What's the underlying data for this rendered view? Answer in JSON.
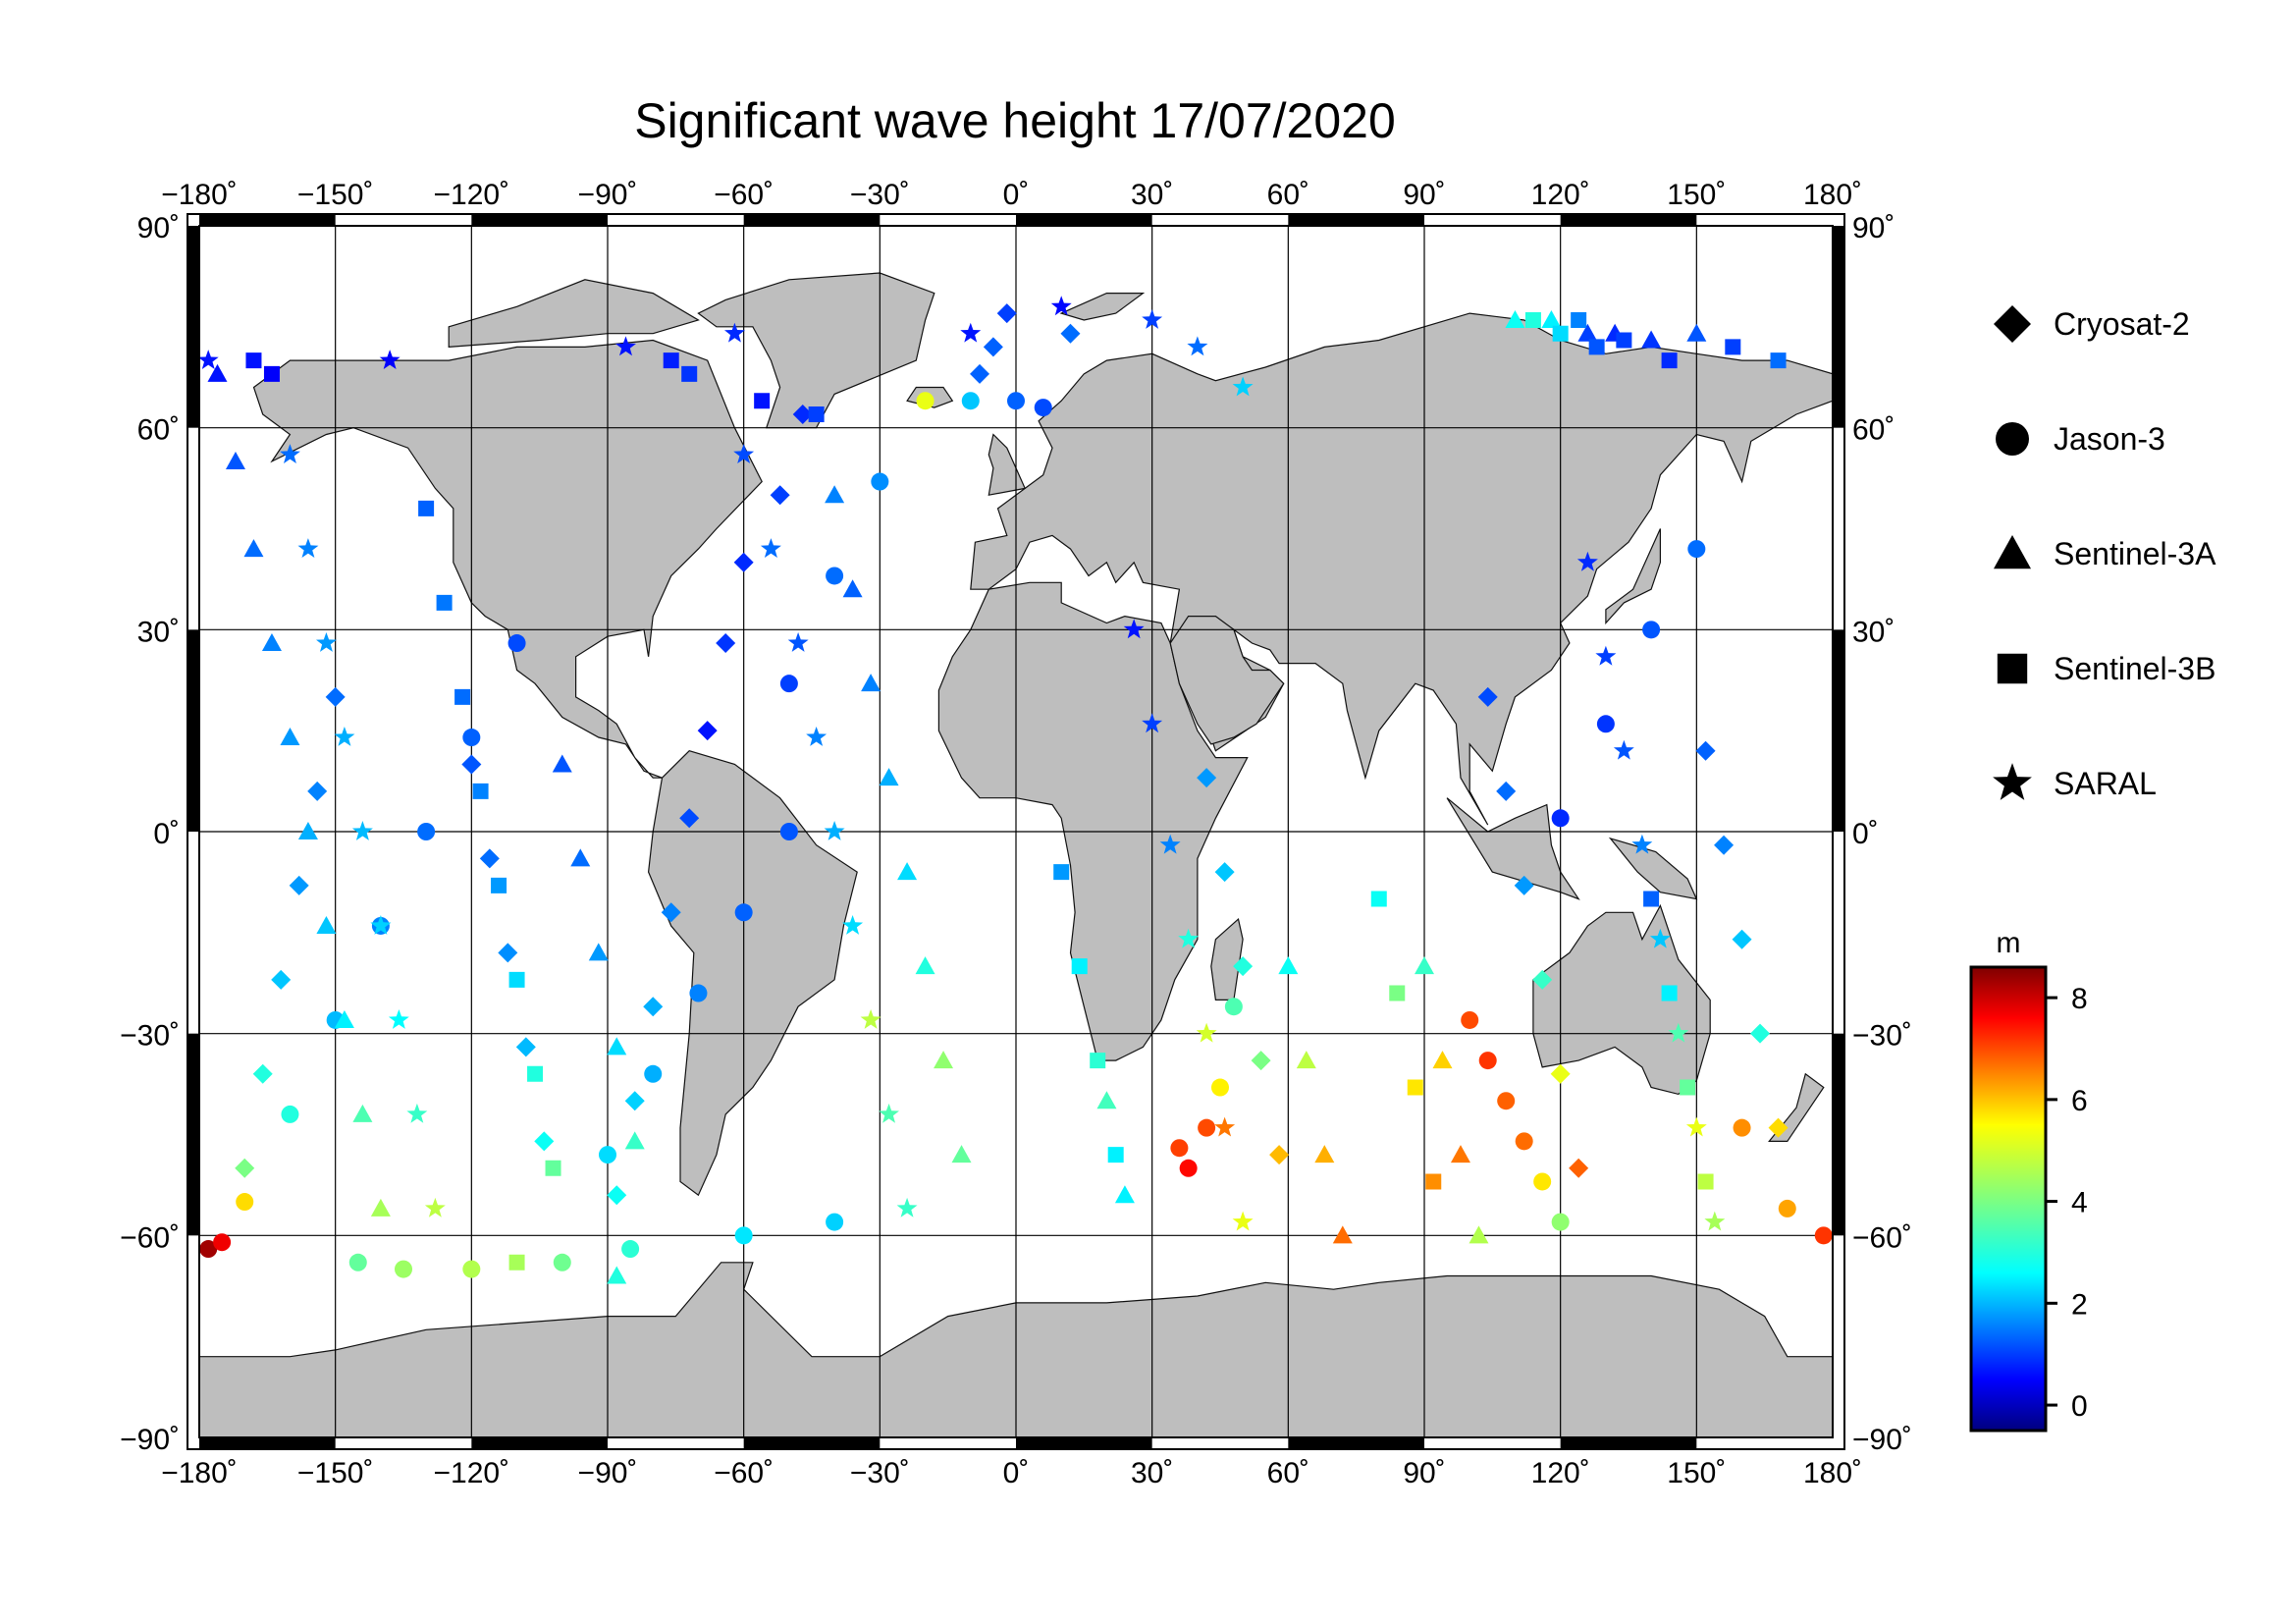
{
  "title": "Significant wave height 17/07/2020",
  "map": {
    "projection": "equirectangular",
    "lon_range": [
      -180,
      180
    ],
    "lat_range": [
      -90,
      90
    ],
    "grid": true,
    "land_color": "#bebebe",
    "ocean_color": "#ffffff",
    "lon_ticks": [
      {
        "value": -180,
        "label": "−180˚"
      },
      {
        "value": -150,
        "label": "−150˚"
      },
      {
        "value": -120,
        "label": "−120˚"
      },
      {
        "value": -90,
        "label": "−90˚"
      },
      {
        "value": -60,
        "label": "−60˚"
      },
      {
        "value": -30,
        "label": "−30˚"
      },
      {
        "value": 0,
        "label": "0˚"
      },
      {
        "value": 30,
        "label": "30˚"
      },
      {
        "value": 60,
        "label": "60˚"
      },
      {
        "value": 90,
        "label": "90˚"
      },
      {
        "value": 120,
        "label": "120˚"
      },
      {
        "value": 150,
        "label": "150˚"
      },
      {
        "value": 180,
        "label": "180˚"
      }
    ],
    "lat_ticks_left": [
      {
        "value": 90,
        "label": "90˚"
      },
      {
        "value": 60,
        "label": "60˚"
      },
      {
        "value": 30,
        "label": "30˚"
      },
      {
        "value": 0,
        "label": "0˚"
      },
      {
        "value": -30,
        "label": "−30˚"
      },
      {
        "value": -60,
        "label": "−60˚"
      },
      {
        "value": -90,
        "label": "−90˚"
      }
    ],
    "lat_ticks_right": [
      {
        "value": 90,
        "label": "90˚"
      },
      {
        "value": 60,
        "label": "60˚"
      },
      {
        "value": 30,
        "label": "30˚"
      },
      {
        "value": 0,
        "label": "0˚"
      },
      {
        "value": -30,
        "label": "−30˚"
      },
      {
        "value": -60,
        "label": "−60˚"
      },
      {
        "value": -90,
        "label": "−90˚"
      }
    ]
  },
  "legend": {
    "placement": "right",
    "items": [
      {
        "label": "Cryosat-2",
        "symbol": "diamond"
      },
      {
        "label": "Jason-3",
        "symbol": "circle"
      },
      {
        "label": "Sentinel-3A",
        "symbol": "triangle"
      },
      {
        "label": "Sentinel-3B",
        "symbol": "square"
      },
      {
        "label": "SARAL",
        "symbol": "star"
      }
    ]
  },
  "colorbar": {
    "unit": "m",
    "colormap": "jet",
    "range": [
      -0.5,
      8.6
    ],
    "ticks": [
      {
        "value": 0,
        "label": "0"
      },
      {
        "value": 2,
        "label": "2"
      },
      {
        "value": 4,
        "label": "4"
      },
      {
        "value": 6,
        "label": "6"
      },
      {
        "value": 8,
        "label": "8"
      }
    ]
  },
  "chart_data": {
    "type": "scatter",
    "title": "Significant wave height 17/07/2020",
    "xlabel": "",
    "ylabel": "",
    "xlim": [
      -180,
      180
    ],
    "ylim": [
      -90,
      90
    ],
    "color_variable": "Significant wave height",
    "color_unit": "m",
    "series": [
      {
        "name": "Cryosat-2",
        "symbol": "diamond",
        "points": [
          [
            -2,
            77,
            1.2
          ],
          [
            -5,
            72,
            1.5
          ],
          [
            -8,
            68,
            1.5
          ],
          [
            12,
            74,
            1.6
          ],
          [
            -47,
            62,
            1.0
          ],
          [
            -52,
            50,
            1.2
          ],
          [
            -60,
            40,
            1.0
          ],
          [
            -64,
            28,
            1.1
          ],
          [
            -68,
            15,
            0.8
          ],
          [
            -72,
            2,
            1.3
          ],
          [
            -76,
            -12,
            1.8
          ],
          [
            -80,
            -26,
            2.2
          ],
          [
            -84,
            -40,
            2.5
          ],
          [
            -88,
            -54,
            3.0
          ],
          [
            42,
            8,
            2.0
          ],
          [
            46,
            -6,
            2.4
          ],
          [
            50,
            -20,
            3.2
          ],
          [
            54,
            -34,
            4.0
          ],
          [
            58,
            -48,
            5.8
          ],
          [
            104,
            20,
            1.3
          ],
          [
            108,
            6,
            1.6
          ],
          [
            112,
            -8,
            2.0
          ],
          [
            116,
            -22,
            3.4
          ],
          [
            120,
            -36,
            5.0
          ],
          [
            124,
            -50,
            6.6
          ],
          [
            -150,
            20,
            1.6
          ],
          [
            -154,
            6,
            1.8
          ],
          [
            -158,
            -8,
            2.0
          ],
          [
            -162,
            -22,
            2.4
          ],
          [
            -166,
            -36,
            3.2
          ],
          [
            -170,
            -50,
            4.0
          ],
          [
            152,
            12,
            1.5
          ],
          [
            156,
            -2,
            1.8
          ],
          [
            160,
            -16,
            2.4
          ],
          [
            164,
            -30,
            3.2
          ],
          [
            168,
            -44,
            5.5
          ],
          [
            -120,
            10,
            1.4
          ],
          [
            -116,
            -4,
            1.6
          ],
          [
            -112,
            -18,
            1.9
          ],
          [
            -108,
            -32,
            2.3
          ],
          [
            -104,
            -46,
            3.0
          ]
        ]
      },
      {
        "name": "Jason-3",
        "symbol": "circle",
        "points": [
          [
            -178,
            -62,
            8.3
          ],
          [
            -175,
            -61,
            7.6
          ],
          [
            -170,
            -55,
            5.5
          ],
          [
            -160,
            -42,
            3.2
          ],
          [
            -150,
            -28,
            2.3
          ],
          [
            -140,
            -14,
            1.8
          ],
          [
            -130,
            0,
            1.6
          ],
          [
            -120,
            14,
            1.5
          ],
          [
            -110,
            28,
            1.3
          ],
          [
            -20,
            64,
            5.0
          ],
          [
            -10,
            64,
            2.4
          ],
          [
            0,
            64,
            1.5
          ],
          [
            6,
            63,
            1.3
          ],
          [
            -30,
            52,
            1.9
          ],
          [
            -40,
            38,
            1.6
          ],
          [
            -50,
            22,
            1.2
          ],
          [
            36,
            -47,
            6.9
          ],
          [
            38,
            -50,
            7.4
          ],
          [
            42,
            -44,
            6.8
          ],
          [
            45,
            -38,
            5.3
          ],
          [
            48,
            -26,
            3.6
          ],
          [
            100,
            -28,
            6.8
          ],
          [
            104,
            -34,
            7.0
          ],
          [
            108,
            -40,
            6.6
          ],
          [
            112,
            -46,
            6.5
          ],
          [
            116,
            -52,
            5.4
          ],
          [
            120,
            -58,
            4.2
          ],
          [
            -90,
            -48,
            2.6
          ],
          [
            -80,
            -36,
            2.2
          ],
          [
            -70,
            -24,
            1.8
          ],
          [
            -60,
            -12,
            1.5
          ],
          [
            -50,
            0,
            1.4
          ],
          [
            150,
            42,
            1.6
          ],
          [
            140,
            30,
            1.4
          ],
          [
            130,
            16,
            1.1
          ],
          [
            120,
            2,
            1.0
          ],
          [
            -145,
            -64,
            3.8
          ],
          [
            -135,
            -65,
            4.3
          ],
          [
            -120,
            -65,
            4.5
          ],
          [
            -100,
            -64,
            3.9
          ],
          [
            -85,
            -62,
            3.3
          ],
          [
            -60,
            -60,
            2.7
          ],
          [
            -40,
            -58,
            2.5
          ],
          [
            178,
            -60,
            7.0
          ],
          [
            170,
            -56,
            6.0
          ],
          [
            160,
            -44,
            6.2
          ]
        ]
      },
      {
        "name": "Sentinel-3A",
        "symbol": "triangle",
        "points": [
          [
            -176,
            68,
            0.8
          ],
          [
            -172,
            55,
            1.4
          ],
          [
            -168,
            42,
            1.6
          ],
          [
            -164,
            28,
            1.8
          ],
          [
            -160,
            14,
            2.0
          ],
          [
            -156,
            0,
            2.2
          ],
          [
            -152,
            -14,
            2.4
          ],
          [
            -148,
            -28,
            2.8
          ],
          [
            -144,
            -42,
            3.6
          ],
          [
            -140,
            -56,
            4.4
          ],
          [
            -40,
            50,
            1.8
          ],
          [
            -36,
            36,
            1.5
          ],
          [
            -32,
            22,
            1.8
          ],
          [
            -28,
            8,
            2.2
          ],
          [
            -24,
            -6,
            2.6
          ],
          [
            -20,
            -20,
            3.2
          ],
          [
            -16,
            -34,
            4.2
          ],
          [
            -12,
            -48,
            3.8
          ],
          [
            20,
            -40,
            3.5
          ],
          [
            24,
            -54,
            2.8
          ],
          [
            60,
            -20,
            3.0
          ],
          [
            64,
            -34,
            4.6
          ],
          [
            68,
            -48,
            5.9
          ],
          [
            72,
            -60,
            6.5
          ],
          [
            110,
            76,
            3.0
          ],
          [
            118,
            76,
            2.8
          ],
          [
            126,
            74,
            1.2
          ],
          [
            132,
            74,
            1.0
          ],
          [
            140,
            73,
            1.1
          ],
          [
            150,
            74,
            1.4
          ],
          [
            90,
            -20,
            3.4
          ],
          [
            94,
            -34,
            5.6
          ],
          [
            98,
            -48,
            6.4
          ],
          [
            102,
            -60,
            4.5
          ],
          [
            -100,
            10,
            1.4
          ],
          [
            -96,
            -4,
            1.6
          ],
          [
            -92,
            -18,
            2.0
          ],
          [
            -88,
            -32,
            2.6
          ],
          [
            -84,
            -46,
            3.4
          ],
          [
            -88,
            -66,
            3.2
          ]
        ]
      },
      {
        "name": "Sentinel-3B",
        "symbol": "square",
        "points": [
          [
            -168,
            70,
            0.8
          ],
          [
            -164,
            68,
            0.6
          ],
          [
            -76,
            70,
            0.9
          ],
          [
            -72,
            68,
            1.1
          ],
          [
            -56,
            64,
            0.8
          ],
          [
            -44,
            62,
            1.2
          ],
          [
            114,
            76,
            3.2
          ],
          [
            120,
            74,
            2.6
          ],
          [
            124,
            76,
            1.8
          ],
          [
            128,
            72,
            1.4
          ],
          [
            134,
            73,
            1.2
          ],
          [
            144,
            70,
            1.0
          ],
          [
            158,
            72,
            1.2
          ],
          [
            168,
            70,
            1.6
          ],
          [
            -130,
            48,
            1.5
          ],
          [
            -126,
            34,
            1.7
          ],
          [
            -122,
            20,
            1.6
          ],
          [
            -118,
            6,
            1.8
          ],
          [
            -114,
            -8,
            2.0
          ],
          [
            -110,
            -22,
            2.6
          ],
          [
            -106,
            -36,
            3.2
          ],
          [
            -102,
            -50,
            3.8
          ],
          [
            -110,
            -64,
            4.4
          ],
          [
            10,
            -6,
            2.0
          ],
          [
            14,
            -20,
            2.8
          ],
          [
            18,
            -34,
            3.3
          ],
          [
            22,
            -48,
            2.8
          ],
          [
            80,
            -10,
            3.0
          ],
          [
            84,
            -24,
            4.0
          ],
          [
            88,
            -38,
            5.4
          ],
          [
            92,
            -52,
            6.2
          ],
          [
            140,
            -10,
            1.5
          ],
          [
            144,
            -24,
            2.8
          ],
          [
            148,
            -38,
            3.8
          ],
          [
            152,
            -52,
            4.6
          ]
        ]
      },
      {
        "name": "SARAL",
        "symbol": "star",
        "points": [
          [
            -178,
            70,
            0.8
          ],
          [
            -138,
            70,
            0.6
          ],
          [
            -86,
            72,
            0.8
          ],
          [
            -62,
            74,
            1.0
          ],
          [
            -10,
            74,
            0.8
          ],
          [
            10,
            78,
            0.7
          ],
          [
            30,
            76,
            1.2
          ],
          [
            40,
            72,
            1.6
          ],
          [
            50,
            66,
            2.5
          ],
          [
            -60,
            56,
            1.3
          ],
          [
            -54,
            42,
            1.6
          ],
          [
            -48,
            28,
            1.4
          ],
          [
            -44,
            14,
            1.8
          ],
          [
            -40,
            0,
            2.2
          ],
          [
            -36,
            -14,
            2.6
          ],
          [
            -32,
            -28,
            4.6
          ],
          [
            -28,
            -42,
            3.6
          ],
          [
            -24,
            -56,
            3.4
          ],
          [
            26,
            30,
            0.8
          ],
          [
            30,
            16,
            1.2
          ],
          [
            34,
            -2,
            1.8
          ],
          [
            38,
            -16,
            3.2
          ],
          [
            42,
            -30,
            4.8
          ],
          [
            46,
            -44,
            6.4
          ],
          [
            50,
            -58,
            5.0
          ],
          [
            126,
            40,
            1.0
          ],
          [
            130,
            26,
            1.2
          ],
          [
            134,
            12,
            1.4
          ],
          [
            138,
            -2,
            1.8
          ],
          [
            142,
            -16,
            2.4
          ],
          [
            146,
            -30,
            3.6
          ],
          [
            150,
            -44,
            5.0
          ],
          [
            154,
            -58,
            4.4
          ],
          [
            -160,
            56,
            1.6
          ],
          [
            -156,
            42,
            1.8
          ],
          [
            -152,
            28,
            2.0
          ],
          [
            -148,
            14,
            2.2
          ],
          [
            -144,
            0,
            2.3
          ],
          [
            -140,
            -14,
            2.5
          ],
          [
            -136,
            -28,
            2.9
          ],
          [
            -132,
            -42,
            3.4
          ],
          [
            -128,
            -56,
            4.6
          ]
        ]
      }
    ]
  }
}
